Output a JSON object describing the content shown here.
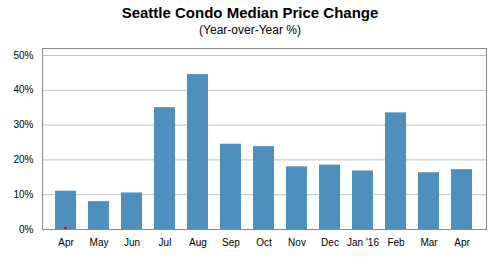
{
  "chart_data": {
    "type": "bar",
    "title": "Seattle Condo Median Price Change",
    "subtitle": "(Year-over-Year %)",
    "categories": [
      "Apr",
      "May",
      "Jun",
      "Jul",
      "Aug",
      "Sep",
      "Oct",
      "Nov",
      "Dec",
      "Jan '16",
      "Feb",
      "Mar",
      "Apr"
    ],
    "series": [
      {
        "color": "#4E8FBE",
        "values": [
          0.11,
          0.08,
          0.105,
          0.35,
          0.445,
          0.245,
          0.238,
          0.18,
          0.185,
          0.168,
          0.335,
          0.163,
          0.172
        ]
      },
      {
        "color": "#CC0000",
        "values": [
          0.005,
          null,
          null,
          null,
          null,
          null,
          null,
          null,
          null,
          null,
          null,
          null,
          null
        ]
      }
    ],
    "ylim": [
      0,
      0.52
    ],
    "yticks": [
      {
        "value": 0,
        "label": "0%"
      },
      {
        "value": 0.1,
        "label": "10%"
      },
      {
        "value": 0.2,
        "label": "20%"
      },
      {
        "value": 0.3,
        "label": "30%"
      },
      {
        "value": 0.4,
        "label": "40%"
      },
      {
        "value": 0.5,
        "label": "50%"
      }
    ],
    "grid": true
  }
}
